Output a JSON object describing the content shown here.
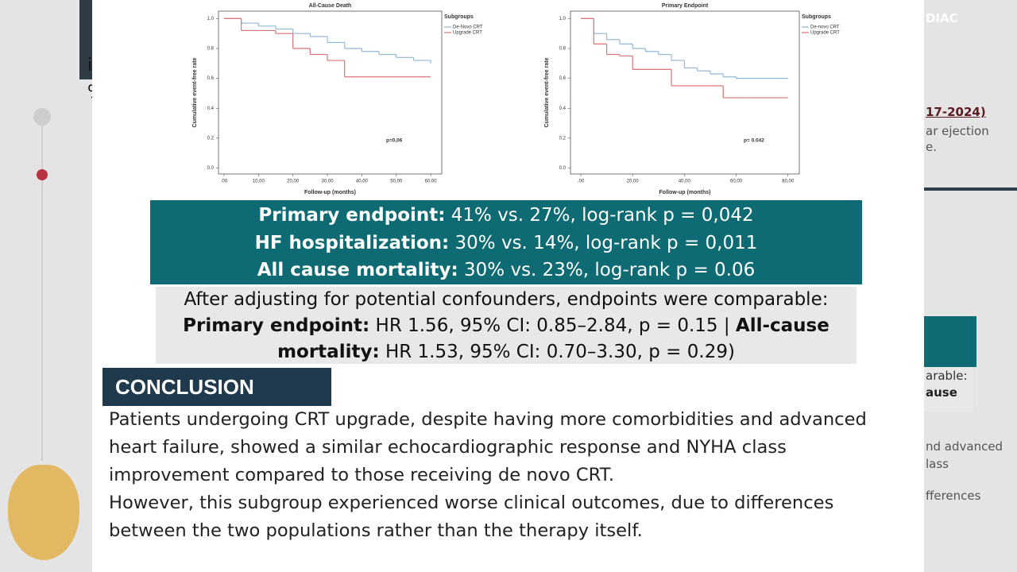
{
  "chart_data": [
    {
      "type": "line",
      "step": true,
      "title": "All-Cause Death",
      "x_label": "Follow-up (months)",
      "y_label": "Cumulative event-free rate",
      "legend_title": "Subgroups",
      "annotation": "p=0,06",
      "x": [
        0,
        5,
        10,
        15,
        20,
        25,
        30,
        35,
        40,
        45,
        50,
        55,
        60
      ],
      "series": [
        {
          "name": "De-Novo CRT",
          "color": "#8fb8d8",
          "values": [
            1.0,
            0.97,
            0.95,
            0.93,
            0.9,
            0.88,
            0.84,
            0.8,
            0.78,
            0.76,
            0.74,
            0.72,
            0.7
          ]
        },
        {
          "name": "Upgrade CRT",
          "color": "#d9737a",
          "values": [
            1.0,
            0.92,
            0.92,
            0.9,
            0.8,
            0.76,
            0.72,
            0.61,
            0.61,
            0.61,
            0.61,
            0.61,
            0.61
          ]
        }
      ],
      "xlim": [
        -1.6,
        63.2
      ],
      "xticks": [
        {
          "value": 0,
          "label": ".00"
        },
        {
          "value": 10,
          "label": "10,00"
        },
        {
          "value": 20,
          "label": "20,00"
        },
        {
          "value": 30,
          "label": "30,00"
        },
        {
          "value": 40,
          "label": "40,00"
        },
        {
          "value": 50,
          "label": "50,00"
        },
        {
          "value": 60,
          "label": "60,00"
        }
      ],
      "ylim": [
        -0.04,
        1.05
      ],
      "yticks": [
        {
          "value": 0,
          "label": "0.0"
        },
        0.2,
        0.4,
        0.6,
        0.8,
        {
          "value": 1,
          "label": "1.0"
        }
      ]
    },
    {
      "type": "line",
      "step": true,
      "title": "Primary Endpoint",
      "x_label": "Follow-up (months)",
      "y_label": "Cumulative event-free rate",
      "legend_title": "Subgroups",
      "annotation": "p= 0.042",
      "x": [
        0,
        5,
        10,
        15,
        20,
        25,
        30,
        35,
        40,
        45,
        50,
        55,
        60,
        65,
        70,
        75,
        80
      ],
      "series": [
        {
          "name": "De-novo CRT",
          "color": "#8fb8d8",
          "values": [
            1.0,
            0.9,
            0.86,
            0.83,
            0.8,
            0.78,
            0.76,
            0.72,
            0.67,
            0.65,
            0.63,
            0.61,
            0.6,
            0.6,
            0.6,
            0.6,
            0.6
          ]
        },
        {
          "name": "Upgrade CRT",
          "color": "#d9737a",
          "values": [
            1.0,
            0.83,
            0.76,
            0.75,
            0.66,
            0.66,
            0.66,
            0.55,
            0.55,
            0.55,
            0.55,
            0.47,
            0.47,
            0.47,
            0.47,
            0.47,
            0.47
          ]
        }
      ],
      "xlim": [
        -4.0,
        84.4
      ],
      "xticks": [
        {
          "value": 0,
          "label": ".00"
        },
        {
          "value": 20,
          "label": "20,00"
        },
        {
          "value": 40,
          "label": "40,00"
        },
        {
          "value": 60,
          "label": "60,00"
        },
        {
          "value": 80,
          "label": "80,00"
        }
      ],
      "ylim": [
        -0.04,
        1.05
      ],
      "yticks": [
        {
          "value": 0,
          "label": "0.0"
        },
        0.2,
        0.4,
        0.6,
        0.8,
        {
          "value": 1,
          "label": "1.0"
        }
      ]
    }
  ],
  "results": [
    {
      "label": "Primary endpoint:",
      "text": " 41% vs. 27%, log-rank p = 0,042"
    },
    {
      "label": "HF hospitalization:",
      "text": " 30% vs. 14%, log-rank p = 0,011"
    },
    {
      "label": "All cause mortality:",
      "text": " 30% vs. 23%, log-rank p = 0.06"
    }
  ],
  "adjusted": {
    "intro": "After adjusting for potential confounders, endpoints were comparable:",
    "label1": "Primary endpoint:",
    "text1": " HR 1.56, 95% CI: 0.85–2.84, p = 0.15 | ",
    "label2": "All-cause mortality:",
    "text2": " HR 1.53, 95% CI: 0.70–3.30, p = 0.29)"
  },
  "conclusion": {
    "heading": "CONCLUSION",
    "paragraphs": [
      "Patients undergoing CRT upgrade, despite having more comorbidities and advanced heart failure, showed a similar echocardiographic response and NYHA class improvement compared to those receiving de novo CRT.",
      "However, this subgroup experienced worse clinical outcomes, due to differences between the two populations rather than the therapy itself."
    ]
  },
  "background_fragments": [
    "is",
    "%",
    "DIAC",
    "17-2024)",
    "ar ejection",
    "e.",
    "arable:",
    "ause",
    "nd advanced",
    "lass",
    "fferences"
  ]
}
